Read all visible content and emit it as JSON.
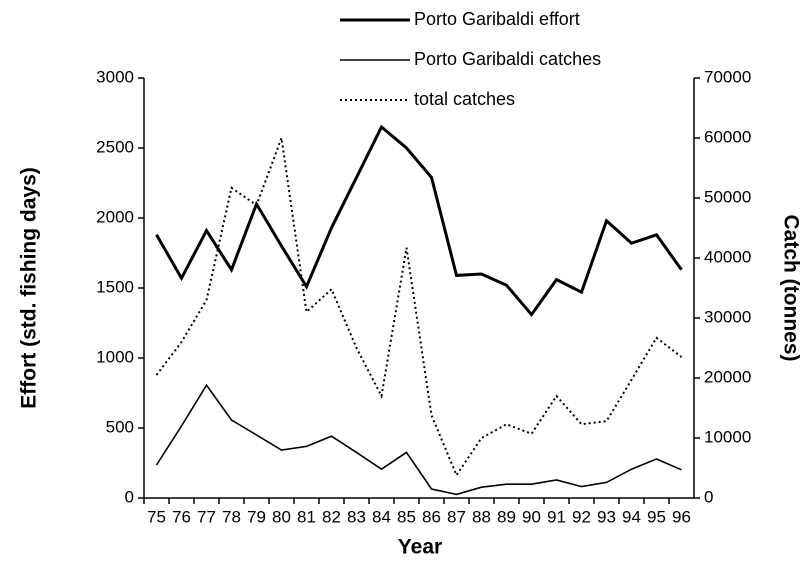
{
  "chart_data": {
    "type": "line",
    "x_label": "Year",
    "y_label": "Effort (std. fishing days)",
    "y2_label": "Catch (tonnes)",
    "categories": [
      "75",
      "76",
      "77",
      "78",
      "79",
      "80",
      "81",
      "82",
      "83",
      "84",
      "85",
      "86",
      "87",
      "88",
      "89",
      "90",
      "91",
      "92",
      "93",
      "94",
      "95",
      "96"
    ],
    "ylim": [
      0,
      3000
    ],
    "yticks": [
      0,
      500,
      1000,
      1500,
      2000,
      2500,
      3000
    ],
    "y2lim": [
      0,
      70000
    ],
    "y2ticks": [
      0,
      10000,
      20000,
      30000,
      40000,
      50000,
      60000,
      70000
    ],
    "grid": false,
    "legend": "top",
    "series": [
      {
        "name": "Porto Garibaldi effort",
        "color": "#000000",
        "style": "thick",
        "values": [
          1880,
          1570,
          1910,
          1630,
          2100,
          1800,
          1510,
          1930,
          2290,
          2650,
          2500,
          2290,
          1590,
          1600,
          1520,
          1310,
          1560,
          1470,
          1980,
          1820,
          1880,
          1630
        ]
      },
      {
        "name": "Porto Garibaldi catches",
        "color": "#000000",
        "style": "solid",
        "axis": "y2",
        "values": [
          5500,
          12000,
          18800,
          13000,
          10500,
          8000,
          8600,
          10300,
          7600,
          4800,
          7600,
          1500,
          600,
          1800,
          2300,
          2300,
          3000,
          1900,
          2600,
          4800,
          6500,
          4700
        ]
      },
      {
        "name": "total catches",
        "color": "#000000",
        "style": "dotted",
        "axis": "y2",
        "values": [
          20500,
          26000,
          33000,
          51700,
          48800,
          60000,
          31000,
          34800,
          25000,
          17000,
          41700,
          13800,
          3800,
          10000,
          12300,
          10700,
          17000,
          12300,
          12800,
          19700,
          26700,
          23500
        ]
      }
    ]
  }
}
